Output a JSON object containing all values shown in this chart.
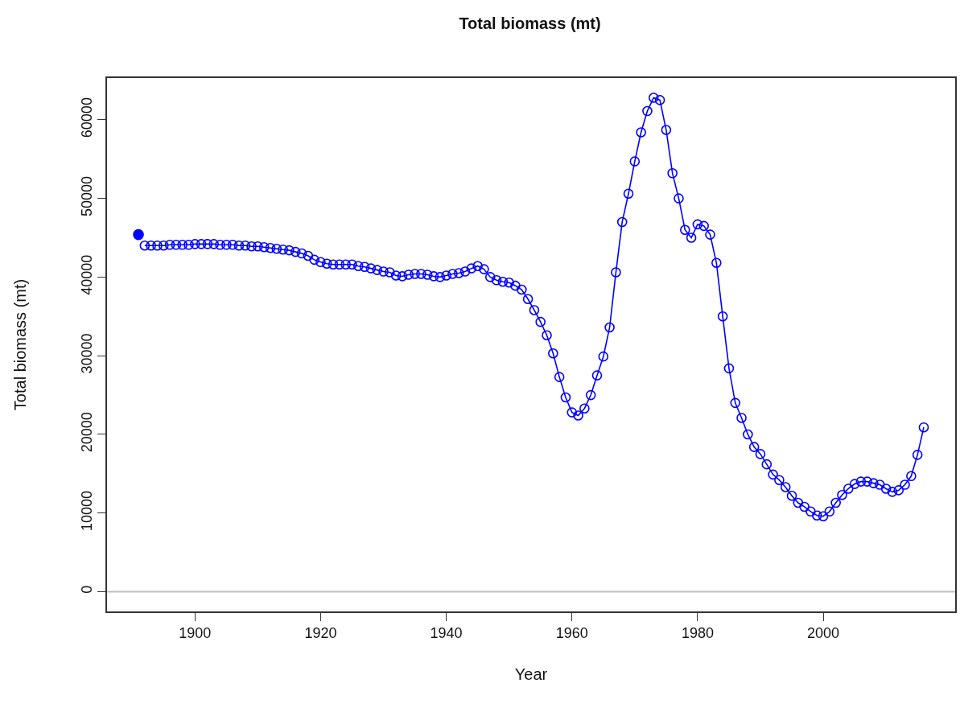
{
  "chart_data": {
    "type": "line",
    "title": "Total biomass (mt)",
    "xlabel": "Year",
    "ylabel": "Total biomass (mt)",
    "series": [
      {
        "type": "scatter",
        "color": "#0000ff",
        "marker": "circle",
        "x": [
          1891
        ],
        "values": [
          45400
        ]
      },
      {
        "color": "#0000ff",
        "marker": "circle",
        "line_style": "solid",
        "x": [
          1892,
          1893,
          1894,
          1895,
          1896,
          1897,
          1898,
          1899,
          1900,
          1901,
          1902,
          1903,
          1904,
          1905,
          1906,
          1907,
          1908,
          1909,
          1910,
          1911,
          1912,
          1913,
          1914,
          1915,
          1916,
          1917,
          1918,
          1919,
          1920,
          1921,
          1922,
          1923,
          1924,
          1925,
          1926,
          1927,
          1928,
          1929,
          1930,
          1931,
          1932,
          1933,
          1934,
          1935,
          1936,
          1937,
          1938,
          1939,
          1940,
          1941,
          1942,
          1943,
          1944,
          1945,
          1946,
          1947,
          1948,
          1949,
          1950,
          1951,
          1952,
          1953,
          1954,
          1955,
          1956,
          1957,
          1958,
          1959,
          1960,
          1961,
          1962,
          1963,
          1964,
          1965,
          1966,
          1967,
          1968,
          1969,
          1970,
          1971,
          1972,
          1973,
          1974,
          1975,
          1976,
          1977,
          1978,
          1979,
          1980,
          1981,
          1982,
          1983,
          1984,
          1985,
          1986,
          1987,
          1988,
          1989,
          1990,
          1991,
          1992,
          1993,
          1994,
          1995,
          1996,
          1997,
          1998,
          1999,
          2000,
          2001,
          2002,
          2003,
          2004,
          2005,
          2006,
          2007,
          2008,
          2009,
          2010,
          2011,
          2012,
          2013,
          2014,
          2015,
          2016
        ],
        "values": [
          44000,
          44000,
          44000,
          44000,
          44100,
          44100,
          44100,
          44100,
          44200,
          44200,
          44200,
          44200,
          44100,
          44100,
          44100,
          44000,
          44000,
          43900,
          43900,
          43800,
          43700,
          43600,
          43500,
          43400,
          43200,
          43000,
          42700,
          42200,
          41900,
          41700,
          41600,
          41600,
          41600,
          41600,
          41400,
          41300,
          41100,
          40900,
          40700,
          40600,
          40200,
          40100,
          40300,
          40400,
          40400,
          40300,
          40100,
          40000,
          40200,
          40400,
          40500,
          40700,
          41100,
          41400,
          41000,
          40000,
          39600,
          39400,
          39300,
          38900,
          38400,
          37200,
          35800,
          34300,
          32600,
          30300,
          27300,
          24700,
          22800,
          22400,
          23300,
          25000,
          27500,
          29900,
          33600,
          40600,
          47000,
          50600,
          54700,
          58400,
          61100,
          62800,
          62500,
          58700,
          53200,
          50000,
          46000,
          45000,
          46700,
          46500,
          45400,
          41800,
          35000,
          28400,
          24000,
          22100,
          20000,
          18400,
          17500,
          16200,
          14900,
          14200,
          13300,
          12200,
          11300,
          10800,
          10200,
          9700,
          9600,
          10200,
          11300,
          12300,
          13100,
          13700,
          14000,
          14000,
          13800,
          13600,
          13100,
          12700,
          12900,
          13600,
          14700,
          17400,
          20900
        ]
      }
    ],
    "xlim": [
      1886,
      2021
    ],
    "xticks": [
      1900,
      1920,
      1940,
      1960,
      1980,
      2000
    ],
    "ylim": [
      -2500,
      65300
    ],
    "yticks": [
      0,
      10000,
      20000,
      30000,
      40000,
      50000,
      60000
    ],
    "ref_lines": [
      {
        "axis": "y",
        "value": 0,
        "color": "#bebebe"
      }
    ],
    "grid": false
  }
}
